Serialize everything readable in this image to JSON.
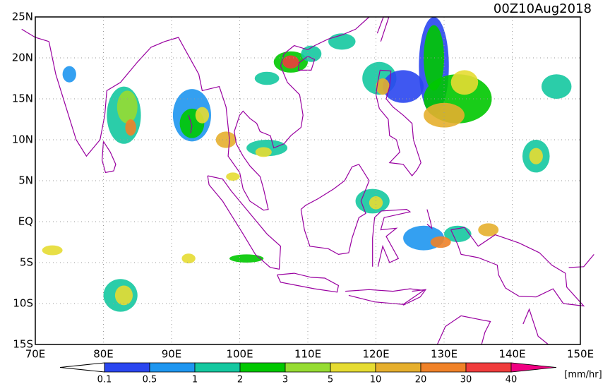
{
  "title": "00Z10Aug2018",
  "map": {
    "x_ticks": [
      "70E",
      "80E",
      "90E",
      "100E",
      "110E",
      "120E",
      "130E",
      "140E",
      "150E"
    ],
    "y_ticks": [
      "25N",
      "20N",
      "15N",
      "10N",
      "5N",
      "EQ",
      "5S",
      "10S",
      "15S"
    ]
  },
  "colorbar": {
    "labels": [
      "0.1",
      "0.5",
      "1",
      "2",
      "3",
      "5",
      "10",
      "20",
      "30",
      "40"
    ],
    "colors": [
      "#2a46f0",
      "#1e96f0",
      "#14c8a0",
      "#00c800",
      "#96dc32",
      "#e6dc32",
      "#e6af2d",
      "#f08228",
      "#f03c3c",
      "#f00082"
    ],
    "unit": "[mm/hr]"
  }
}
